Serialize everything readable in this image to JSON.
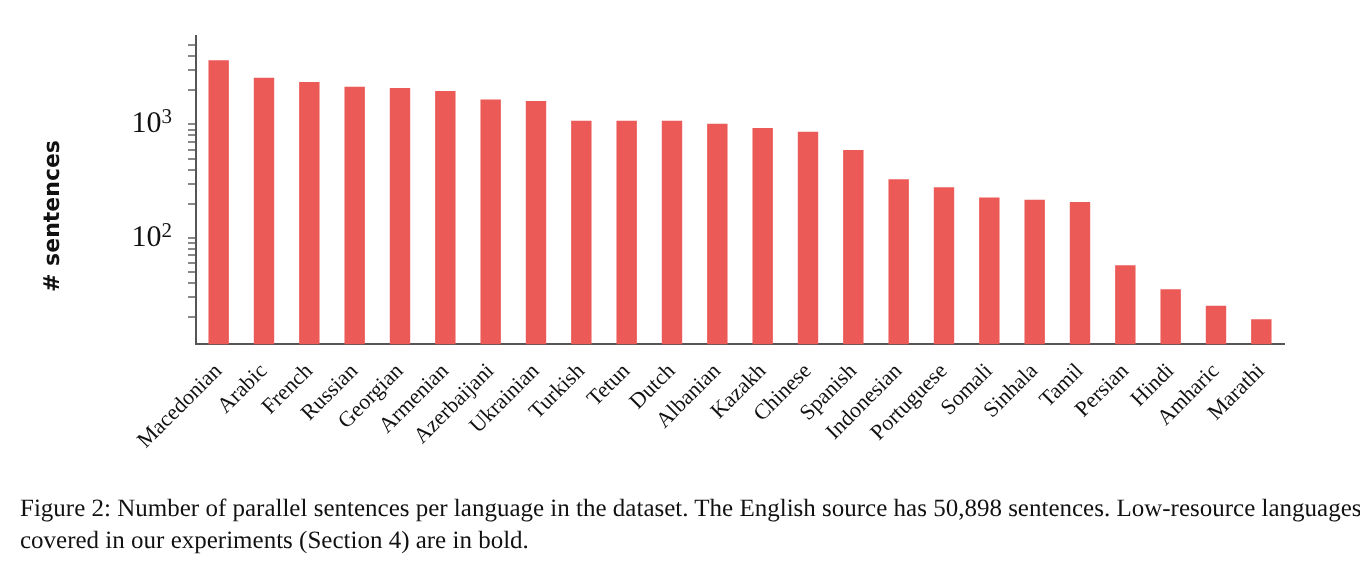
{
  "chart_data": {
    "type": "bar",
    "ylabel": "# sentences",
    "categories": [
      "Macedonian",
      "Arabic",
      "French",
      "Russian",
      "Georgian",
      "Armenian",
      "Azerbaijani",
      "Ukrainian",
      "Turkish",
      "Tetun",
      "Dutch",
      "Albanian",
      "Kazakh",
      "Chinese",
      "Spanish",
      "Indonesian",
      "Portuguese",
      "Somali",
      "Sinhala",
      "Tamil",
      "Persian",
      "Hindi",
      "Amharic",
      "Marathi"
    ],
    "values": [
      3700,
      2590,
      2370,
      2160,
      2100,
      1980,
      1660,
      1610,
      1080,
      1080,
      1080,
      1015,
      929,
      862,
      594,
      328,
      279,
      226,
      216,
      207,
      57,
      35,
      25,
      19
    ],
    "color": "#ec5a58",
    "log": true,
    "ylim": [
      11.4,
      6000
    ],
    "yticks": [
      {
        "value": 20,
        "label": null
      },
      {
        "value": 30,
        "label": null
      },
      {
        "value": 40,
        "label": null
      },
      {
        "value": 50,
        "label": null
      },
      {
        "value": 60,
        "label": null
      },
      {
        "value": 70,
        "label": null
      },
      {
        "value": 80,
        "label": null
      },
      {
        "value": 90,
        "label": null
      },
      {
        "value": 100,
        "label": "10$^{2}$"
      },
      {
        "value": 200,
        "label": null
      },
      {
        "value": 300,
        "label": null
      },
      {
        "value": 400,
        "label": null
      },
      {
        "value": 500,
        "label": null
      },
      {
        "value": 600,
        "label": null
      },
      {
        "value": 700,
        "label": null
      },
      {
        "value": 800,
        "label": null
      },
      {
        "value": 900,
        "label": null
      },
      {
        "value": 1000,
        "label": "10$^{3}$"
      },
      {
        "value": 2000,
        "label": null
      },
      {
        "value": 3000,
        "label": null
      },
      {
        "value": 4000,
        "label": null
      },
      {
        "value": 5000,
        "label": null
      }
    ],
    "grid": false,
    "legend": false,
    "annotations": [
      "Figure 2: Number of parallel sentences per language in the dataset. The English source has 50,898 sentences. Low-resource languages covered in our experiments (Section 4) are in bold."
    ]
  }
}
